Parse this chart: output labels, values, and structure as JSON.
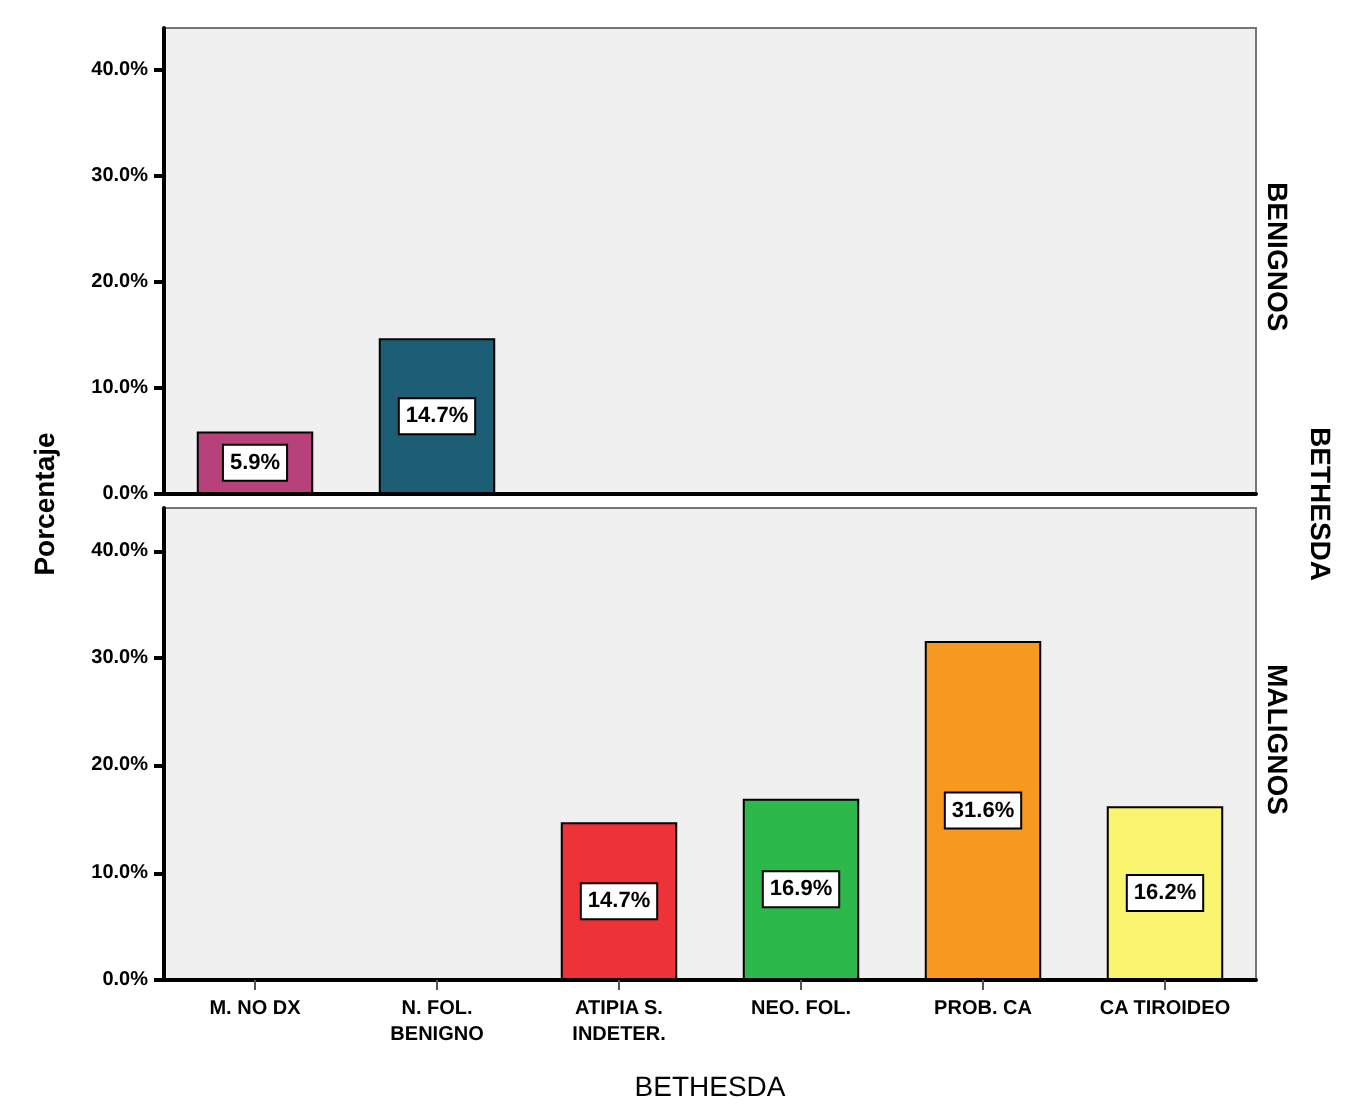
{
  "chart_data": [
    {
      "type": "bar",
      "title": "BENIGNOS",
      "ylabel": "Porcentaje",
      "annotations": [
        "BETHESDA"
      ],
      "categories": [
        null,
        null,
        null,
        null,
        null,
        null
      ],
      "values": [
        5.9,
        14.7,
        null,
        null,
        null,
        null
      ],
      "colors": [
        "#b8417b",
        "#1c5e75",
        "#ee3338",
        "#2db84b",
        "#f7991f",
        "#f9f56e"
      ],
      "value_labels": [
        "5.9%",
        "14.7%",
        null,
        null,
        null,
        null
      ],
      "ylim": [
        0,
        44
      ],
      "yticks": [
        {
          "value": 0,
          "label": "0.0%"
        },
        {
          "value": 10,
          "label": "10.0%"
        },
        {
          "value": 20,
          "label": "20.0%"
        },
        {
          "value": 30,
          "label": "30.0%"
        },
        {
          "value": 40,
          "label": "40.0%"
        }
      ],
      "tick_labels": "y",
      "grid": false
    },
    {
      "type": "bar",
      "title": "MALIGNOS",
      "xlabel": "BETHESDA",
      "categories": [
        "M. NO DX",
        "N. FOL.\nBENIGNO",
        "ATIPIA S.\nINDETER.",
        "NEO. FOL.",
        "PROB. CA",
        "CA TIROIDEO"
      ],
      "values": [
        null,
        null,
        14.7,
        16.9,
        31.6,
        16.2
      ],
      "colors": [
        "#b8417b",
        "#1c5e75",
        "#ee3338",
        "#2db84b",
        "#f7991f",
        "#f9f56e"
      ],
      "value_labels": [
        null,
        null,
        "14.7%",
        "16.9%",
        "31.6%",
        "16.2%"
      ],
      "ylim": [
        0,
        44
      ],
      "yticks": [
        {
          "value": 0,
          "label": "0.0%"
        },
        {
          "value": 10,
          "label": "10.0%"
        },
        {
          "value": 20,
          "label": "20.0%"
        },
        {
          "value": 30,
          "label": "30.0%"
        },
        {
          "value": 40,
          "label": "40.0%"
        }
      ],
      "grid": false
    }
  ]
}
